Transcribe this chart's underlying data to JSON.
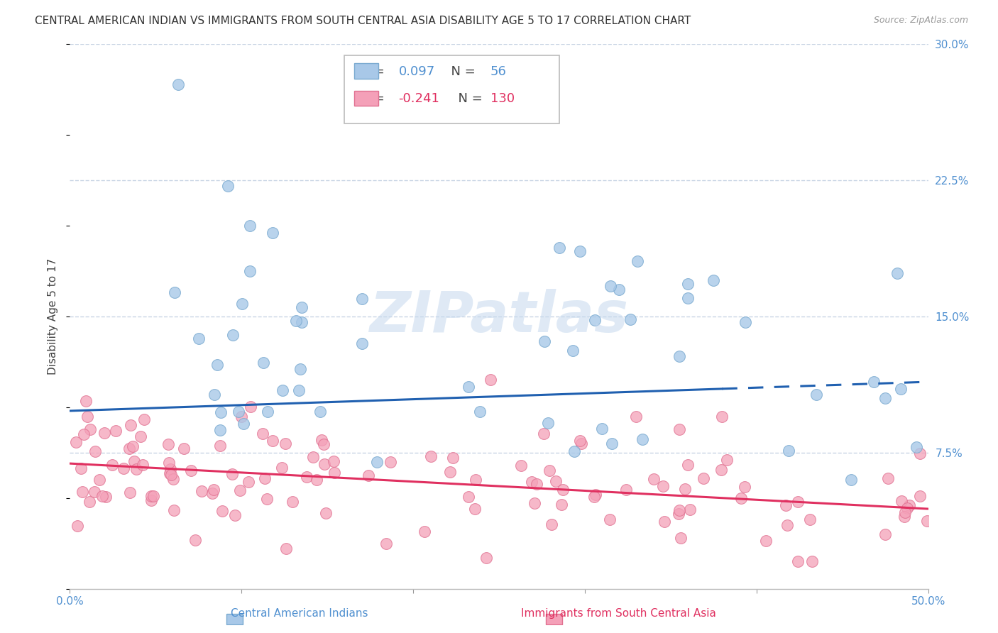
{
  "title": "CENTRAL AMERICAN INDIAN VS IMMIGRANTS FROM SOUTH CENTRAL ASIA DISABILITY AGE 5 TO 17 CORRELATION CHART",
  "source": "Source: ZipAtlas.com",
  "ylabel": "Disability Age 5 to 17",
  "xlim": [
    0.0,
    0.5
  ],
  "ylim": [
    0.0,
    0.3
  ],
  "blue_R": 0.097,
  "blue_N": 56,
  "pink_R": -0.241,
  "pink_N": 130,
  "blue_color": "#a8c8e8",
  "pink_color": "#f4a0b8",
  "blue_edge_color": "#7aaad0",
  "pink_edge_color": "#e07090",
  "blue_line_color": "#2060b0",
  "pink_line_color": "#e03060",
  "label_color": "#5090d0",
  "watermark": "ZIPatlas",
  "blue_trend_y_start": 0.098,
  "blue_trend_y_end": 0.114,
  "pink_trend_y_start": 0.069,
  "pink_trend_y_end": 0.044,
  "grid_color": "#c8d4e4",
  "background_color": "#ffffff",
  "title_fontsize": 11,
  "axis_label_fontsize": 11,
  "tick_fontsize": 11,
  "legend_fontsize": 13
}
